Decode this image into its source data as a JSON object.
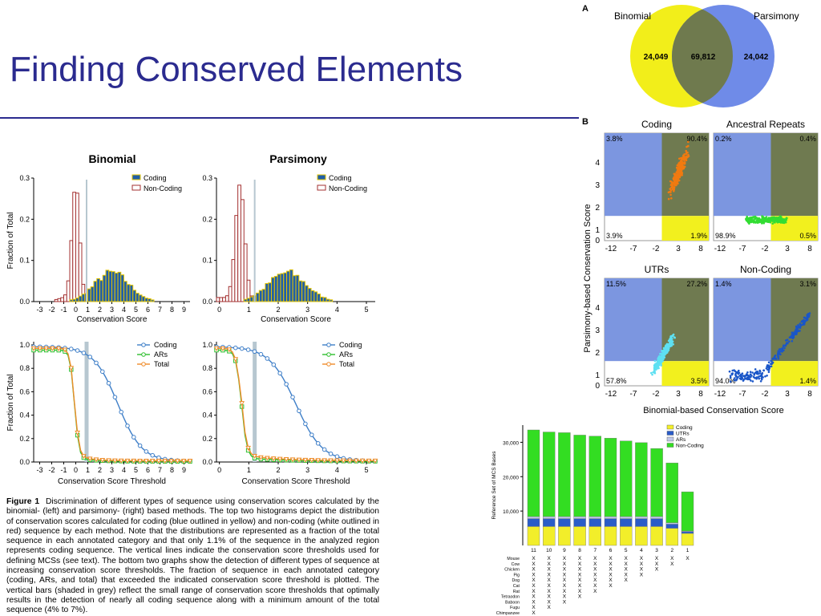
{
  "title": "Finding Conserved Elements",
  "fig1": {
    "col_titles": [
      "Binomial",
      "Parsimony"
    ],
    "top_ylabel": "Fraction of Total",
    "bottom_ylabel": "Fraction of Total",
    "top_xlabel": "Conservation Score",
    "bottom_xlabel": "Conservation Score Threshold",
    "hist_legend": [
      "Coding",
      "Non-Coding"
    ],
    "curve_legend": [
      "Coding",
      "ARs",
      "Total"
    ],
    "colors": {
      "coding_fill": "#1f5ea8",
      "coding_edge": "#e3c400",
      "noncoding_edge": "#a33030",
      "coding_line": "#3f7fc8",
      "ars_line": "#2fbf2f",
      "total_line": "#ef8c2a",
      "threshold_bar": "#b7c7d0"
    },
    "caption": {
      "label": "Figure 1",
      "text": "Discrimination of different types of sequence using conservation scores calculated by the binomial- (left) and parsimony- (right) based methods. The top two histograms depict the distribution of conservation scores calculated for coding (blue outlined in yellow) and non-coding (white outlined in red) sequence by each method. Note that the distributions are represented as a fraction of the total sequence in each annotated category and that only 1.1% of the sequence in the analyzed region represents coding sequence. The vertical lines indicate the conservation score thresholds used for defining MCSs (see text). The bottom two graphs show the detection of different types of sequence at increasing conservation score thresholds. The fraction of sequence in each annotated category (coding, ARs, and total) that exceeded the indicated conservation score threshold is plotted. The vertical bars (shaded in grey) reflect the small range of conservation score thresholds that optimally results in the detection of nearly all coding sequence along with a minimum amount of the total sequence (4% to 7%)."
    }
  },
  "venn": {
    "panel_label": "A",
    "left_label": "Binomial",
    "right_label": "Parsimony",
    "left_only": "24,049",
    "overlap": "69,812",
    "right_only": "24,042",
    "colors": {
      "left": "#f2ee1a",
      "right": "#6f8be8",
      "overlap": "#6f7a4e"
    }
  },
  "scatter": {
    "panel_label": "B",
    "ylabel": "Parsimony-based Conservation Score",
    "xlabel": "Binomial-based Conservation Score",
    "panels": [
      {
        "title": "Coding",
        "q": [
          "3.8%",
          "90.4%",
          "3.9%",
          "1.9%"
        ]
      },
      {
        "title": "Ancestral Repeats",
        "q": [
          "0.2%",
          "0.4%",
          "98.9%",
          "0.5%"
        ]
      },
      {
        "title": "UTRs",
        "q": [
          "11.5%",
          "27.2%",
          "57.8%",
          "3.5%"
        ]
      },
      {
        "title": "Non-Coding",
        "q": [
          "1.4%",
          "3.1%",
          "94.0%",
          "1.4%"
        ]
      }
    ],
    "colors": {
      "blue_quad": "#7c96e0",
      "olive_quad": "#6f7a50",
      "yellow_quad": "#f2f01e",
      "coding_pts": "#f07a10",
      "ar_pts": "#33dd33",
      "utr_pts": "#5ee0f2",
      "noncoding_pts": "#1a56c8"
    }
  },
  "chart_data": [
    {
      "type": "bar",
      "title": "",
      "xlabel": "",
      "ylabel": "Reference Set of MCS Bases",
      "categories": [
        "11",
        "10",
        "9",
        "8",
        "7",
        "6",
        "5",
        "4",
        "3",
        "2",
        "1"
      ],
      "ylim": [
        0,
        35000
      ],
      "yticks": [
        "10,000",
        "20,000",
        "30,000"
      ],
      "series": [
        {
          "name": "Coding",
          "values": [
            5500,
            5500,
            5500,
            5500,
            5500,
            5500,
            5500,
            5500,
            5500,
            5000,
            3500
          ]
        },
        {
          "name": "UTRs",
          "values": [
            2300,
            2300,
            2300,
            2300,
            2300,
            2300,
            2300,
            2300,
            2300,
            1200,
            500
          ]
        },
        {
          "name": "ARs",
          "values": [
            600,
            600,
            600,
            600,
            600,
            600,
            600,
            600,
            600,
            400,
            200
          ]
        },
        {
          "name": "Non-Coding",
          "values": [
            25200,
            24600,
            24400,
            23700,
            23400,
            22800,
            22000,
            21500,
            19800,
            17400,
            11400
          ]
        }
      ],
      "species": [
        "Mouse",
        "Cow",
        "Chicken",
        "Pig",
        "Dog",
        "Cat",
        "Rat",
        "Tetraodon",
        "Baboon",
        "Fugu",
        "Chimpanzee"
      ],
      "species_counts": [
        11,
        10,
        9,
        8,
        7,
        6,
        5,
        4,
        3,
        2,
        1
      ],
      "mark": "X",
      "colors": [
        "#f2ee2a",
        "#2a5cc8",
        "#c0c8e8",
        "#33dd22"
      ]
    }
  ]
}
